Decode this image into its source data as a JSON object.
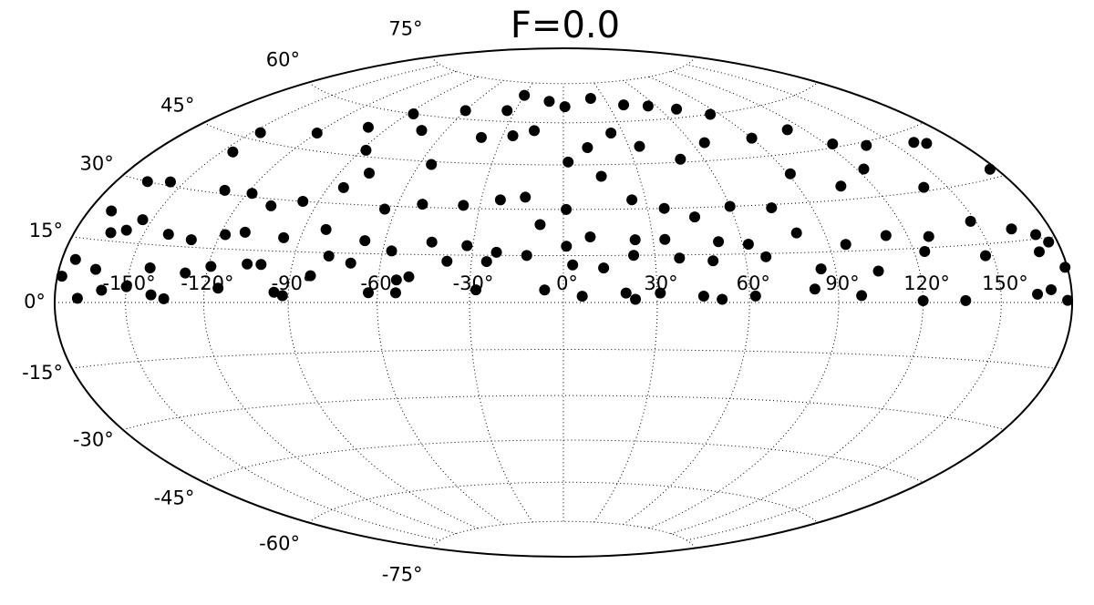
{
  "chart_data": {
    "type": "scatter",
    "projection": "hammer",
    "title": "F=0.0",
    "color": "#000000",
    "grid": true,
    "xlim": [
      -180,
      180
    ],
    "ylim": [
      -90,
      90
    ],
    "xticks": [
      {
        "value": -150,
        "label": "-150°"
      },
      {
        "value": -120,
        "label": "-120°"
      },
      {
        "value": -90,
        "label": "-90°"
      },
      {
        "value": -60,
        "label": "-60°"
      },
      {
        "value": -30,
        "label": "-30°"
      },
      {
        "value": 0,
        "label": "0°"
      },
      {
        "value": 30,
        "label": "30°"
      },
      {
        "value": 60,
        "label": "60°"
      },
      {
        "value": 90,
        "label": "90°"
      },
      {
        "value": 120,
        "label": "120°"
      },
      {
        "value": 150,
        "label": "150°"
      }
    ],
    "yticks": [
      {
        "value": -75,
        "label": "-75°"
      },
      {
        "value": -60,
        "label": "-60°"
      },
      {
        "value": -45,
        "label": "-45°"
      },
      {
        "value": -30,
        "label": "-30°"
      },
      {
        "value": -15,
        "label": "-15°"
      },
      {
        "value": 0,
        "label": "0°"
      },
      {
        "value": 15,
        "label": "15°"
      },
      {
        "value": 30,
        "label": "30°"
      },
      {
        "value": 45,
        "label": "45°"
      },
      {
        "value": 60,
        "label": "60°"
      },
      {
        "value": 75,
        "label": "75°"
      }
    ],
    "x": [
      -170,
      -160,
      -150,
      -140,
      -135,
      -115,
      -95,
      -92,
      -63,
      -54,
      -28,
      -6,
      6,
      20,
      23,
      31,
      45,
      51,
      62,
      82,
      98,
      120,
      136,
      165,
      178,
      171,
      -178,
      -174,
      -164,
      -142,
      -128,
      -119,
      -106,
      -101,
      -83,
      -78,
      -70,
      -54,
      -50,
      -38,
      -25,
      -12,
      3,
      13,
      23,
      38,
      49,
      67,
      85,
      105,
      124,
      147,
      170,
      176,
      179,
      -170,
      -164,
      -158,
      -154,
      -140,
      -130,
      -118,
      -111,
      -96,
      -82,
      -67,
      -57,
      -44,
      -32,
      -22,
      -8,
      1,
      9,
      24,
      34,
      52,
      62,
      80,
      96,
      112,
      128,
      148,
      163,
      172,
      -166,
      -156,
      -145,
      -130,
      -118,
      -107,
      -96,
      -84,
      -78,
      -64,
      -51,
      -36,
      -23,
      -14,
      1,
      15,
      25,
      36,
      46,
      60,
      75,
      91,
      107,
      123,
      140,
      165,
      177,
      -146,
      -120,
      -100,
      -88,
      -72,
      -55,
      -40,
      -25,
      -15,
      2,
      11,
      24,
      35,
      50,
      66,
      90,
      112,
      123,
      137,
      160,
      -87,
      -60,
      -35,
      -30,
      1,
      20,
      40,
      55,
      70,
      85,
      -10
    ],
    "values": [
      1,
      3,
      4,
      2,
      1,
      4,
      3,
      2,
      3,
      3,
      4,
      4,
      2,
      3,
      1,
      3,
      2,
      1,
      2,
      4,
      2,
      0.5,
      0.5,
      2,
      0.5,
      3,
      6,
      10,
      8,
      9,
      8,
      10,
      11,
      11,
      8,
      14,
      12,
      7,
      8,
      13,
      13,
      15,
      12,
      11,
      15,
      14,
      13,
      14,
      10,
      9,
      14,
      12,
      12,
      14,
      8,
      22,
      17,
      18,
      21,
      18,
      17,
      19,
      20,
      19,
      22,
      19,
      16,
      19,
      18,
      16,
      25,
      18,
      21,
      20,
      20,
      19,
      18,
      21,
      17,
      19,
      18,
      21,
      18,
      16,
      30,
      31,
      41,
      31,
      31,
      28,
      30,
      35,
      40,
      29,
      31,
      31,
      33,
      34,
      30,
      41,
      33,
      30,
      27,
      30,
      29,
      39,
      34,
      38,
      31,
      41,
      32,
      47,
      50,
      54,
      47,
      55,
      44,
      54,
      55,
      57,
      46,
      51,
      56,
      51,
      46,
      51,
      51,
      52,
      46,
      44,
      42,
      60,
      63,
      64,
      70,
      66,
      69,
      66,
      65,
      63,
      60,
      68
    ]
  }
}
